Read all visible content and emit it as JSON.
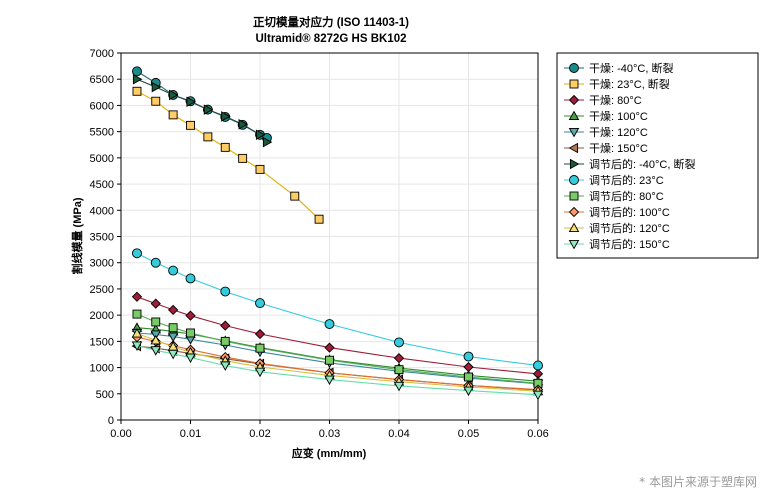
{
  "chart_data": {
    "type": "line",
    "title": "正切模量对应力 (ISO 11403-1)",
    "subtitle": "Ultramid® 8272G HS BK102",
    "xlabel": "应变 (mm/mm)",
    "ylabel": "割线模量 (MPa)",
    "xlim": [
      0,
      0.06
    ],
    "ylim": [
      0,
      7000
    ],
    "x_ticks": [
      0,
      0.01,
      0.02,
      0.03,
      0.04,
      0.05,
      0.06
    ],
    "x_tick_labels": [
      "0.00",
      "0.01",
      "0.02",
      "0.03",
      "0.04",
      "0.05",
      "0.06"
    ],
    "y_ticks": [
      0,
      500,
      1000,
      1500,
      2000,
      2500,
      3000,
      3500,
      4000,
      4500,
      5000,
      5500,
      6000,
      6500,
      7000
    ],
    "y_tick_labels": [
      "0",
      "500",
      "1000",
      "1500",
      "2000",
      "2500",
      "3000",
      "3500",
      "4000",
      "4500",
      "5000",
      "5500",
      "6000",
      "6500",
      "7000"
    ],
    "grid": true,
    "legend_position": "right",
    "series": [
      {
        "name": "干燥: -40°C, 断裂",
        "marker": "circle",
        "color": "#1b8a8a",
        "line": "#1b6b6b",
        "x": [
          0.0023,
          0.005,
          0.0075,
          0.01,
          0.0125,
          0.015,
          0.0175,
          0.02,
          0.021
        ],
        "y": [
          6650,
          6430,
          6200,
          6080,
          5920,
          5780,
          5630,
          5440,
          5380
        ]
      },
      {
        "name": "干燥: 23°C, 断裂",
        "marker": "square",
        "color": "#ffcc66",
        "line": "#e0b000",
        "x": [
          0.0023,
          0.005,
          0.0075,
          0.01,
          0.0125,
          0.015,
          0.0175,
          0.02,
          0.025,
          0.0285
        ],
        "y": [
          6270,
          6080,
          5820,
          5620,
          5400,
          5200,
          4990,
          4780,
          4270,
          3830
        ]
      },
      {
        "name": "干燥: 80°C",
        "marker": "diamond",
        "color": "#a01d3a",
        "line": "#a01d3a",
        "x": [
          0.0023,
          0.005,
          0.0075,
          0.01,
          0.015,
          0.02,
          0.03,
          0.04,
          0.05,
          0.06
        ],
        "y": [
          2350,
          2220,
          2100,
          1990,
          1800,
          1640,
          1380,
          1180,
          1010,
          880
        ]
      },
      {
        "name": "干燥: 100°C",
        "marker": "triangle-up",
        "color": "#4aa04a",
        "line": "#2e8b2e",
        "x": [
          0.0023,
          0.005,
          0.0075,
          0.01,
          0.015,
          0.02,
          0.03,
          0.04,
          0.05,
          0.06
        ],
        "y": [
          1760,
          1730,
          1690,
          1640,
          1510,
          1380,
          1150,
          990,
          850,
          740
        ]
      },
      {
        "name": "干燥: 120°C",
        "marker": "triangle-down",
        "color": "#5fa8a8",
        "line": "#3a8a9a",
        "x": [
          0.0023,
          0.005,
          0.0075,
          0.01,
          0.015,
          0.02,
          0.03,
          0.04,
          0.05,
          0.06
        ],
        "y": [
          1660,
          1630,
          1590,
          1540,
          1430,
          1300,
          1090,
          930,
          800,
          690
        ]
      },
      {
        "name": "干燥: 150°C",
        "marker": "triangle-left",
        "color": "#b07850",
        "line": "#8b5a3c",
        "x": [
          0.0023,
          0.005,
          0.0075,
          0.01,
          0.015,
          0.02,
          0.03,
          0.04,
          0.05,
          0.06
        ],
        "y": [
          1410,
          1370,
          1320,
          1270,
          1170,
          1070,
          900,
          770,
          660,
          570
        ]
      },
      {
        "name": "调节后的: -40°C, 断裂",
        "marker": "triangle-right",
        "color": "#1a5a3a",
        "line": "#224444",
        "x": [
          0.0023,
          0.005,
          0.0075,
          0.01,
          0.0125,
          0.015,
          0.0175,
          0.02,
          0.021
        ],
        "y": [
          6500,
          6350,
          6200,
          6070,
          5920,
          5790,
          5640,
          5440,
          5300
        ]
      },
      {
        "name": "调节后的: 23°C",
        "marker": "circle",
        "color": "#33ccdd",
        "line": "#33ccdd",
        "x": [
          0.0023,
          0.005,
          0.0075,
          0.01,
          0.015,
          0.02,
          0.03,
          0.04,
          0.05,
          0.06
        ],
        "y": [
          3180,
          3000,
          2850,
          2700,
          2450,
          2230,
          1830,
          1480,
          1210,
          1040
        ]
      },
      {
        "name": "调节后的: 80°C",
        "marker": "square",
        "color": "#77cc66",
        "line": "#55aa55",
        "x": [
          0.0023,
          0.005,
          0.0075,
          0.01,
          0.015,
          0.02,
          0.03,
          0.04,
          0.05,
          0.06
        ],
        "y": [
          2020,
          1870,
          1760,
          1660,
          1500,
          1370,
          1140,
          960,
          820,
          700
        ]
      },
      {
        "name": "调节后的: 100°C",
        "marker": "diamond",
        "color": "#ff9966",
        "line": "#e07030",
        "x": [
          0.0023,
          0.005,
          0.0075,
          0.01,
          0.015,
          0.02,
          0.03,
          0.04,
          0.05,
          0.06
        ],
        "y": [
          1580,
          1500,
          1420,
          1340,
          1200,
          1080,
          900,
          770,
          660,
          580
        ]
      },
      {
        "name": "调节后的: 120°C",
        "marker": "triangle-up",
        "color": "#f4e07a",
        "line": "#d8c040",
        "x": [
          0.0023,
          0.005,
          0.0075,
          0.01,
          0.015,
          0.02,
          0.03,
          0.04,
          0.05,
          0.06
        ],
        "y": [
          1650,
          1520,
          1400,
          1290,
          1130,
          1010,
          850,
          730,
          630,
          550
        ]
      },
      {
        "name": "调节后的: 150°C",
        "marker": "triangle-down",
        "color": "#8fe8c0",
        "line": "#66ddaa",
        "x": [
          0.0023,
          0.005,
          0.0075,
          0.01,
          0.015,
          0.02,
          0.03,
          0.04,
          0.05,
          0.06
        ],
        "y": [
          1420,
          1330,
          1260,
          1190,
          1040,
          920,
          770,
          650,
          560,
          480
        ]
      }
    ]
  },
  "watermark": "* 本图片来源于塑库网"
}
